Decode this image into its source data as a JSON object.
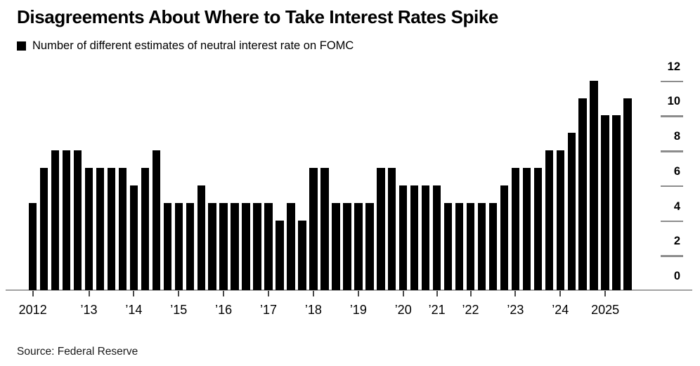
{
  "header": {
    "title": "Disagreements About Where to Take Interest Rates Spike",
    "legend_label": "Number of different estimates of neutral interest rate on FOMC"
  },
  "footer": {
    "source": "Source: Federal Reserve"
  },
  "chart_data": {
    "type": "bar",
    "title": "Disagreements About Where to Take Interest Rates Spike",
    "legend": [
      "Number of different estimates of neutral interest rate on FOMC"
    ],
    "bar_color": "#000000",
    "tick_color": "#8c8c8c",
    "background": "#ffffff",
    "grid": "off",
    "legend_position": "top-left",
    "y_axis_side": "right",
    "ylim": [
      0,
      12
    ],
    "yticks": [
      0,
      2,
      4,
      6,
      8,
      10,
      12
    ],
    "x_tick_labels": [
      "2012",
      "’13",
      "’14",
      "’15",
      "’16",
      "’17",
      "’18",
      "’19",
      "’20",
      "’21",
      "’22",
      "’23",
      "’24",
      "2025"
    ],
    "groups": [
      {
        "label": "2012",
        "values": [
          5,
          7,
          8,
          8,
          8
        ]
      },
      {
        "label": "’13",
        "values": [
          7,
          7,
          7,
          7
        ]
      },
      {
        "label": "’14",
        "values": [
          6,
          7,
          8,
          5
        ]
      },
      {
        "label": "’15",
        "values": [
          5,
          5,
          6,
          5
        ]
      },
      {
        "label": "’16",
        "values": [
          5,
          5,
          5,
          5
        ]
      },
      {
        "label": "’17",
        "values": [
          5,
          4,
          5,
          4
        ]
      },
      {
        "label": "’18",
        "values": [
          7,
          7,
          5,
          5
        ]
      },
      {
        "label": "’19",
        "values": [
          5,
          5,
          7,
          7
        ]
      },
      {
        "label": "’20",
        "values": [
          6,
          6,
          6
        ]
      },
      {
        "label": "’21",
        "values": [
          6,
          5,
          5
        ]
      },
      {
        "label": "’22",
        "values": [
          5,
          5,
          5,
          6
        ]
      },
      {
        "label": "’23",
        "values": [
          7,
          7,
          7,
          8
        ]
      },
      {
        "label": "’24",
        "values": [
          8,
          9,
          11,
          12
        ]
      },
      {
        "label": "2025",
        "values": [
          10,
          10,
          11
        ]
      }
    ]
  }
}
